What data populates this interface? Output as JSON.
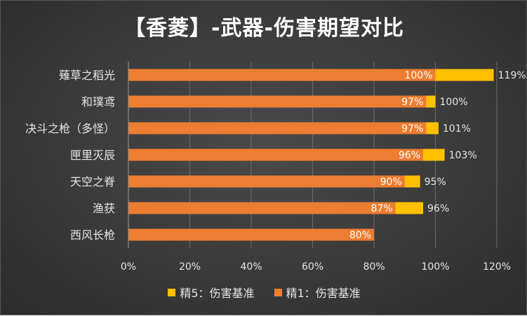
{
  "chart_data": {
    "type": "bar",
    "orientation": "horizontal",
    "title": "【香菱】-武器-伤害期望对比",
    "categories": [
      "薙草之稻光",
      "和璞鸢",
      "决斗之枪（多怪）",
      "匣里灭辰",
      "天空之脊",
      "渔获",
      "西风长枪"
    ],
    "series": [
      {
        "name": "精5：伤害基准",
        "color": "#FFC000",
        "values": [
          1.19,
          1.0,
          1.01,
          1.03,
          0.95,
          0.96,
          null
        ],
        "labels": [
          "119%",
          "100%",
          "101%",
          "103%",
          "95%",
          "96%",
          ""
        ]
      },
      {
        "name": "精1：伤害基准",
        "color": "#ED7D31",
        "values": [
          1.0,
          0.97,
          0.97,
          0.96,
          0.9,
          0.87,
          0.8
        ],
        "labels": [
          "100%",
          "97%",
          "97%",
          "96%",
          "90%",
          "87%",
          "80%"
        ]
      }
    ],
    "xlim": [
      0,
      1.2
    ],
    "xticks": [
      0,
      0.2,
      0.4,
      0.6,
      0.8,
      1.0,
      1.2
    ],
    "xtick_labels": [
      "0%",
      "20%",
      "40%",
      "60%",
      "80%",
      "100%",
      "120%"
    ],
    "grid": "vertical",
    "legend_position": "bottom"
  }
}
